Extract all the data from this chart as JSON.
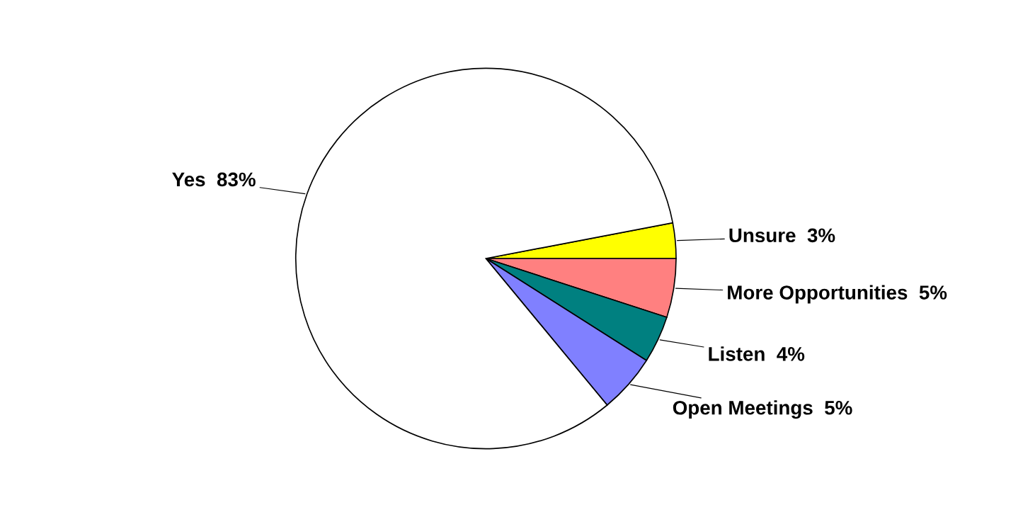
{
  "chart_data": {
    "type": "pie",
    "categories": [
      "Unsure",
      "More Opportunities",
      "Listen",
      "Open Meetings",
      "Yes"
    ],
    "values": [
      3,
      5,
      4,
      5,
      83
    ],
    "value_labels": [
      "3%",
      "5%",
      "4%",
      "5%",
      "83%"
    ],
    "colors": [
      "#ffff00",
      "#ff8080",
      "#008080",
      "#8080ff",
      "#ffffff"
    ]
  }
}
